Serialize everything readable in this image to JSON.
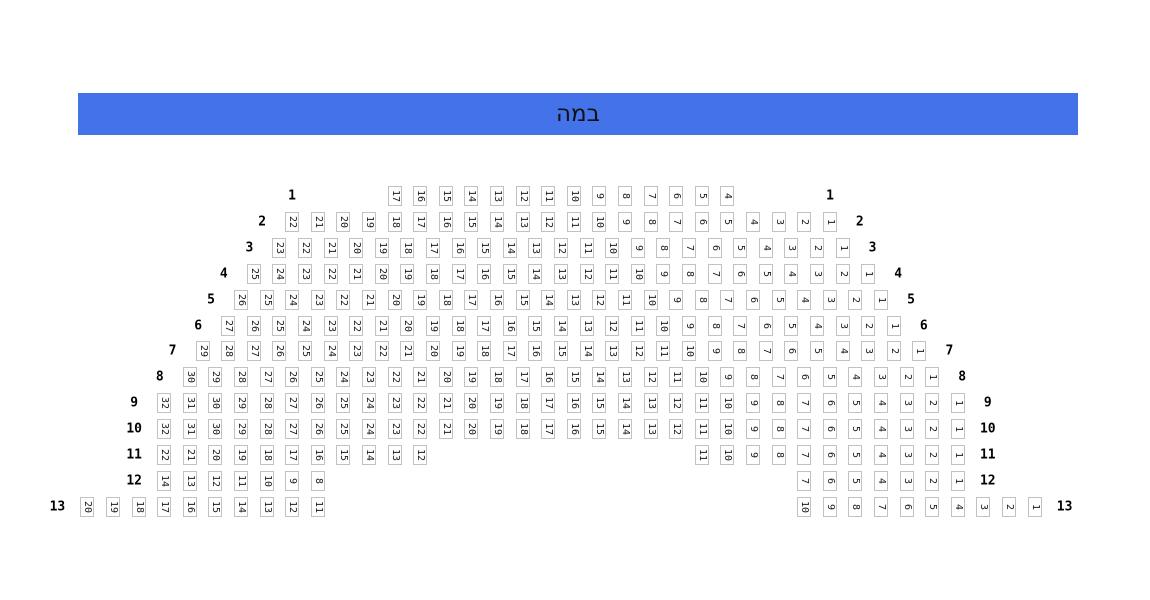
{
  "stage": {
    "label": "במה"
  },
  "colors": {
    "stage_bg": "#4472e8",
    "stage_text": "#111111",
    "seat_bg": "#ffffff",
    "seat_border": "#c2c2c2",
    "seat_text": "#1a1a1a",
    "row_label_text": "#000000"
  },
  "rows": [
    {
      "label": "1",
      "blocks": [
        [
          17,
          16,
          15,
          14,
          13,
          12,
          11,
          10,
          9,
          8,
          7,
          6,
          5,
          4
        ]
      ]
    },
    {
      "label": "2",
      "blocks": [
        [
          22,
          21,
          20,
          19,
          18,
          17,
          16,
          15,
          14,
          13,
          12,
          11,
          10,
          9,
          8,
          7,
          6,
          5,
          4,
          3,
          2,
          1
        ]
      ]
    },
    {
      "label": "3",
      "blocks": [
        [
          23,
          22,
          21,
          20,
          19,
          18,
          17,
          16,
          15,
          14,
          13,
          12,
          11,
          10,
          9,
          8,
          7,
          6,
          5,
          4,
          3,
          2,
          1
        ]
      ]
    },
    {
      "label": "4",
      "blocks": [
        [
          25,
          24,
          23,
          22,
          21,
          20,
          19,
          18,
          17,
          16,
          15,
          14,
          13,
          12,
          11,
          10,
          9,
          8,
          7,
          6,
          5,
          4,
          3,
          2,
          1
        ]
      ]
    },
    {
      "label": "5",
      "blocks": [
        [
          26,
          25,
          24,
          23,
          22,
          21,
          20,
          19,
          18,
          17,
          16,
          15,
          14,
          13,
          12,
          11,
          10,
          9,
          8,
          7,
          6,
          5,
          4,
          3,
          2,
          1
        ]
      ]
    },
    {
      "label": "6",
      "blocks": [
        [
          27,
          26,
          25,
          24,
          23,
          22,
          21,
          20,
          19,
          18,
          17,
          16,
          15,
          14,
          13,
          12,
          11,
          10,
          9,
          8,
          7,
          6,
          5,
          4,
          3,
          2,
          1
        ]
      ]
    },
    {
      "label": "7",
      "blocks": [
        [
          29,
          28,
          27,
          26,
          25,
          24,
          23,
          22,
          21,
          20,
          19,
          18,
          17,
          16,
          15,
          14,
          13,
          12,
          11,
          10,
          9,
          8,
          7,
          6,
          5,
          4,
          3,
          2,
          1
        ]
      ]
    },
    {
      "label": "8",
      "blocks": [
        [
          30,
          29,
          28,
          27,
          26,
          25,
          24,
          23,
          22,
          21,
          20,
          19,
          18,
          17,
          16,
          15,
          14,
          13,
          12,
          11,
          10,
          9,
          8,
          7,
          6,
          5,
          4,
          3,
          2,
          1
        ]
      ]
    },
    {
      "label": "9",
      "blocks": [
        [
          32,
          31,
          30,
          29,
          28,
          27,
          26,
          25,
          24,
          23,
          22,
          21,
          20,
          19,
          18,
          17,
          16,
          15,
          14,
          13,
          12,
          11,
          10,
          9,
          8,
          7,
          6,
          5,
          4,
          3,
          2,
          1
        ]
      ]
    },
    {
      "label": "10",
      "blocks": [
        [
          32,
          31,
          30,
          29,
          28,
          27,
          26,
          25,
          24,
          23,
          22,
          21,
          20,
          19,
          18,
          17,
          16,
          15,
          14,
          13,
          12,
          11,
          10,
          9,
          8,
          7,
          6,
          5,
          4,
          3,
          2,
          1
        ]
      ]
    },
    {
      "label": "11",
      "blocks": [
        [
          22,
          21,
          20,
          19,
          18,
          17,
          16,
          15,
          14,
          13,
          12
        ],
        [
          11,
          10,
          9,
          8,
          7,
          6,
          5,
          4,
          3,
          2,
          1
        ]
      ]
    },
    {
      "label": "12",
      "blocks": [
        [
          14,
          13,
          12,
          11,
          10,
          9,
          8
        ],
        [
          7,
          6,
          5,
          4,
          3,
          2,
          1
        ]
      ]
    },
    {
      "label": "13",
      "blocks": [
        [
          20,
          19,
          18,
          17,
          16,
          15,
          14,
          13,
          12,
          11
        ],
        [
          10,
          9,
          8,
          7,
          6,
          5,
          4,
          3,
          2,
          1
        ]
      ]
    }
  ]
}
